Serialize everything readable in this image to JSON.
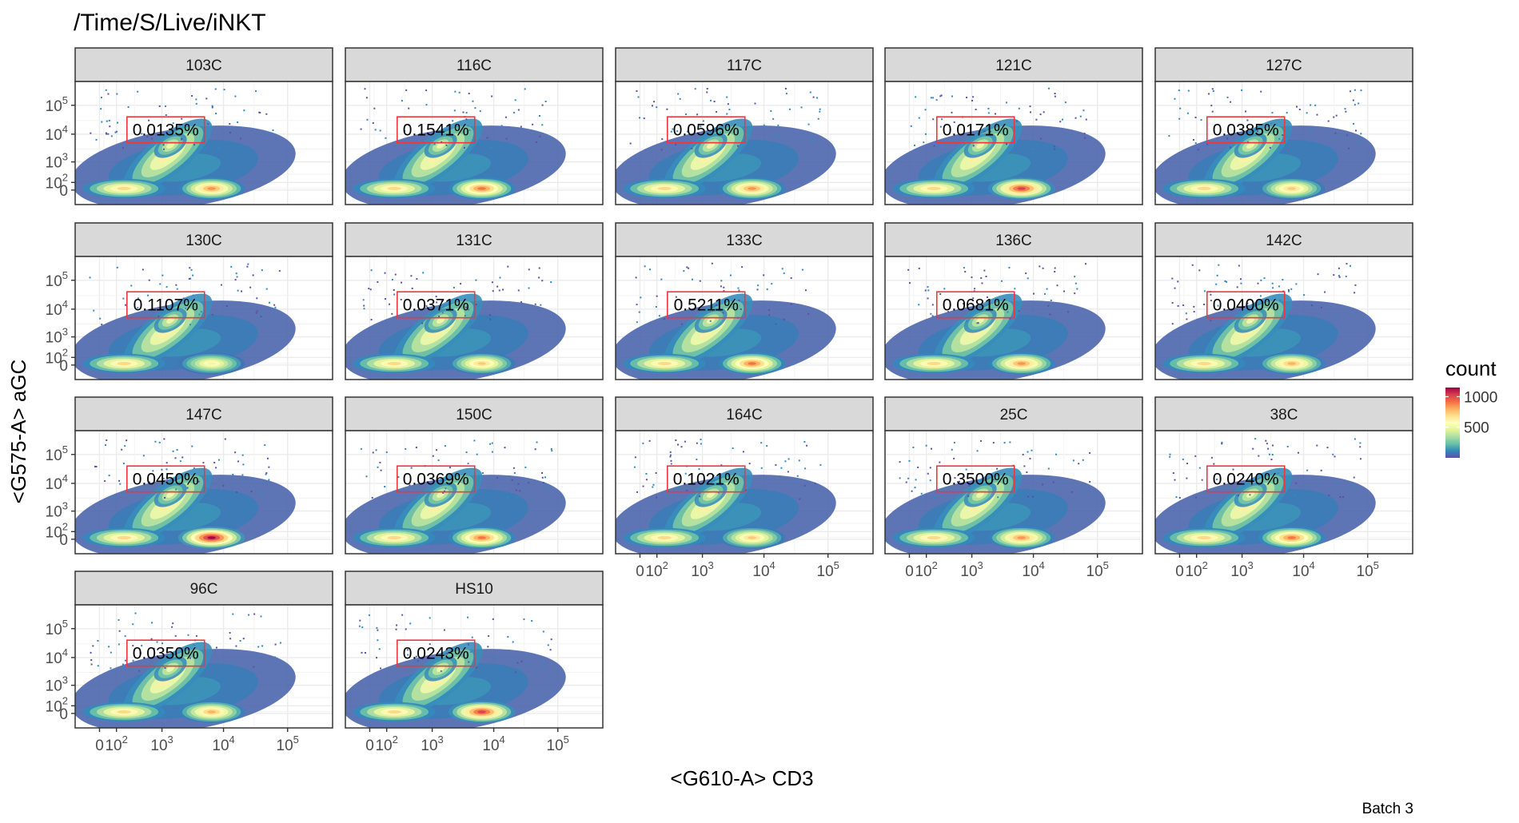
{
  "chart_data": {
    "type": "heatmap",
    "title": "/Time/S/Live/iNKT",
    "xlabel": "<G610-A> CD3",
    "ylabel": "<G575-A> aGC",
    "caption": "Batch 3",
    "legend": {
      "title": "count",
      "ticks": [
        {
          "value": 1000,
          "label": "1000"
        },
        {
          "value": 500,
          "label": "500"
        }
      ],
      "range": [
        0,
        1150
      ],
      "colors": [
        "#5E4FA2",
        "#3288BD",
        "#66C2A5",
        "#ABDDA4",
        "#E6F598",
        "#FFFFBF",
        "#FEE08B",
        "#FDAE61",
        "#F46D43",
        "#D53E4F",
        "#9E0142"
      ],
      "placement": "right"
    },
    "x_ticks": [
      {
        "value": 0,
        "base": "0",
        "exp": ""
      },
      {
        "value": 100,
        "base": "10",
        "exp": "2"
      },
      {
        "value": 1000,
        "base": "10",
        "exp": "3"
      },
      {
        "value": 10000,
        "base": "10",
        "exp": "4"
      },
      {
        "value": 100000,
        "base": "10",
        "exp": "5"
      }
    ],
    "y_ticks": [
      {
        "value": 100000,
        "base": "10",
        "exp": "5"
      },
      {
        "value": 10000,
        "base": "10",
        "exp": "4"
      },
      {
        "value": 1000,
        "base": "10",
        "exp": "3"
      },
      {
        "value": 100,
        "base": "10",
        "exp": "2"
      },
      {
        "value": 0,
        "base": "0",
        "exp": ""
      }
    ],
    "gate": {
      "x_range": [
        200,
        5000
      ],
      "y_range": [
        5000,
        40000
      ]
    },
    "panels": [
      {
        "label": "103C",
        "gate_value": "0.0135%",
        "peak": 0.75
      },
      {
        "label": "116C",
        "gate_value": "0.1541%",
        "peak": 0.8
      },
      {
        "label": "117C",
        "gate_value": "0.0596%",
        "peak": 0.75
      },
      {
        "label": "121C",
        "gate_value": "0.0171%",
        "peak": 0.9
      },
      {
        "label": "127C",
        "gate_value": "0.0385%",
        "peak": 0.65
      },
      {
        "label": "130C",
        "gate_value": "0.1107%",
        "peak": 0.55
      },
      {
        "label": "131C",
        "gate_value": "0.0371%",
        "peak": 0.65
      },
      {
        "label": "133C",
        "gate_value": "0.5211%",
        "peak": 0.8
      },
      {
        "label": "136C",
        "gate_value": "0.0681%",
        "peak": 0.75
      },
      {
        "label": "142C",
        "gate_value": "0.0400%",
        "peak": 0.7
      },
      {
        "label": "147C",
        "gate_value": "0.0450%",
        "peak": 1.0
      },
      {
        "label": "150C",
        "gate_value": "0.0369%",
        "peak": 0.8
      },
      {
        "label": "164C",
        "gate_value": "0.1021%",
        "peak": 0.65
      },
      {
        "label": "25C",
        "gate_value": "0.3500%",
        "peak": 0.75
      },
      {
        "label": "38C",
        "gate_value": "0.0240%",
        "peak": 0.8
      },
      {
        "label": "96C",
        "gate_value": "0.0350%",
        "peak": 0.7
      },
      {
        "label": "HS10",
        "gate_value": "0.0243%",
        "peak": 0.9
      }
    ]
  }
}
